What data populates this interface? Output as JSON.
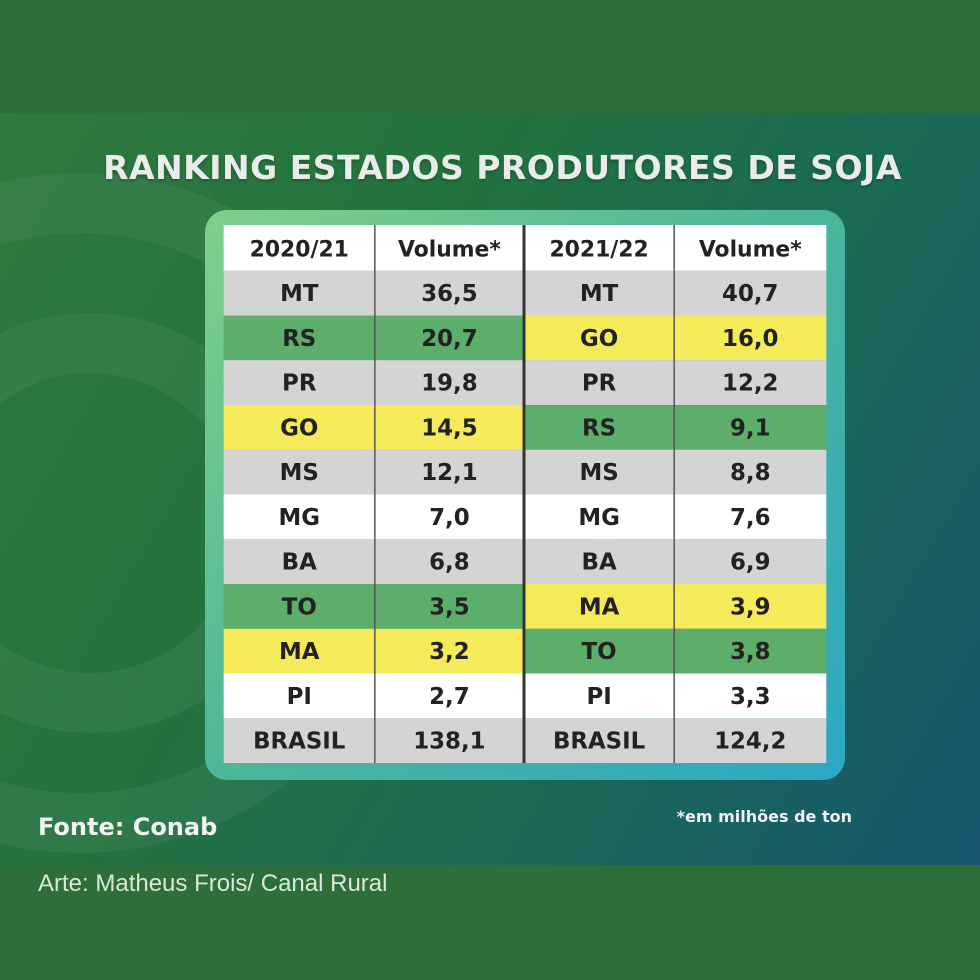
{
  "chart_data": {
    "type": "table",
    "title": "RANKING ESTADOS PRODUTORES DE SOJA",
    "columns": [
      "2020/21",
      "Volume*",
      "2021/22",
      "Volume*"
    ],
    "rows_2020_21": [
      {
        "state": "MT",
        "value": "36,5",
        "color": "gray"
      },
      {
        "state": "RS",
        "value": "20,7",
        "color": "green"
      },
      {
        "state": "PR",
        "value": "19,8",
        "color": "gray"
      },
      {
        "state": "GO",
        "value": "14,5",
        "color": "yellow"
      },
      {
        "state": "MS",
        "value": "12,1",
        "color": "gray"
      },
      {
        "state": "MG",
        "value": "7,0",
        "color": "white"
      },
      {
        "state": "BA",
        "value": "6,8",
        "color": "gray"
      },
      {
        "state": "TO",
        "value": "3,5",
        "color": "green"
      },
      {
        "state": "MA",
        "value": "3,2",
        "color": "yellow"
      },
      {
        "state": "PI",
        "value": "2,7",
        "color": "white"
      },
      {
        "state": "BRASIL",
        "value": "138,1",
        "color": "gray"
      }
    ],
    "rows_2021_22": [
      {
        "state": "MT",
        "value": "40,7",
        "color": "gray"
      },
      {
        "state": "GO",
        "value": "16,0",
        "color": "yellow"
      },
      {
        "state": "PR",
        "value": "12,2",
        "color": "gray"
      },
      {
        "state": "RS",
        "value": "9,1",
        "color": "green"
      },
      {
        "state": "MS",
        "value": "8,8",
        "color": "gray"
      },
      {
        "state": "MG",
        "value": "7,6",
        "color": "white"
      },
      {
        "state": "BA",
        "value": "6,9",
        "color": "gray"
      },
      {
        "state": "MA",
        "value": "3,9",
        "color": "yellow"
      },
      {
        "state": "TO",
        "value": "3,8",
        "color": "green"
      },
      {
        "state": "PI",
        "value": "3,3",
        "color": "white"
      },
      {
        "state": "BRASIL",
        "value": "124,2",
        "color": "gray"
      }
    ],
    "source": "Fonte: Conab",
    "unit_note": "*em milhões de ton"
  },
  "colors": {
    "gray": "#d4d4d4",
    "green": "#5cae6a",
    "yellow": "#f4ea5a",
    "white": "#ffffff",
    "header": "#ffffff",
    "text": "#222222"
  },
  "credit": "Arte: Matheus Frois/ Canal Rural"
}
